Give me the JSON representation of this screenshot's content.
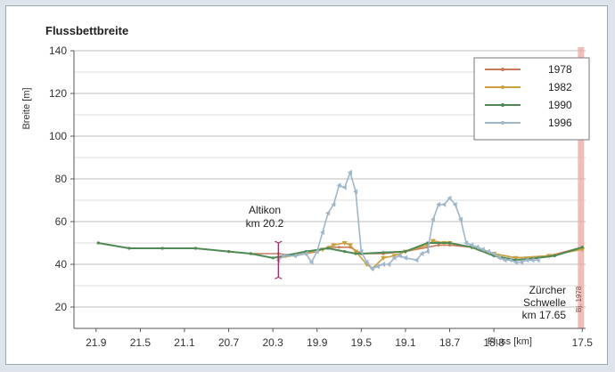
{
  "chart_data": {
    "type": "line",
    "title": "Flussbettbreite",
    "ylabel": "Breite [m]",
    "xlabel": "Fluss [km]",
    "xlim": [
      22.1,
      17.47
    ],
    "ylim": [
      10,
      140
    ],
    "grid": true,
    "x_ticks": [
      21.9,
      21.5,
      21.1,
      20.7,
      20.3,
      19.9,
      19.5,
      19.1,
      18.7,
      18.3,
      17.5
    ],
    "y_ticks": [
      20,
      40,
      60,
      80,
      100,
      120,
      140
    ],
    "legend_position": "top-right",
    "series": [
      {
        "name": "1978",
        "color": "#c97a5a",
        "points": [
          [
            21.88,
            50
          ],
          [
            21.6,
            47.5
          ],
          [
            21.3,
            47.5
          ],
          [
            21.0,
            47.5
          ],
          [
            20.7,
            46
          ],
          [
            20.5,
            45
          ],
          [
            20.25,
            45
          ],
          [
            20.1,
            44
          ],
          [
            19.9,
            46
          ],
          [
            19.8,
            48
          ],
          [
            19.7,
            48
          ],
          [
            19.6,
            48
          ],
          [
            19.5,
            45
          ],
          [
            19.3,
            45
          ],
          [
            19.1,
            46
          ],
          [
            18.9,
            48
          ],
          [
            18.8,
            49
          ],
          [
            18.7,
            49
          ],
          [
            18.5,
            48
          ],
          [
            18.3,
            45
          ],
          [
            18.1,
            43
          ],
          [
            17.8,
            44
          ],
          [
            17.5,
            48
          ]
        ]
      },
      {
        "name": "1982",
        "color": "#c8a040",
        "points": [
          [
            20.25,
            43
          ],
          [
            20.0,
            45
          ],
          [
            19.85,
            47
          ],
          [
            19.75,
            49
          ],
          [
            19.65,
            50
          ],
          [
            19.6,
            49
          ],
          [
            19.55,
            46
          ],
          [
            19.45,
            40
          ],
          [
            19.4,
            38
          ],
          [
            19.3,
            43
          ],
          [
            19.2,
            44
          ],
          [
            19.1,
            46
          ],
          [
            18.9,
            49
          ],
          [
            18.85,
            51
          ],
          [
            18.75,
            50
          ],
          [
            18.7,
            50
          ],
          [
            18.5,
            48
          ],
          [
            18.3,
            45
          ],
          [
            18.1,
            43
          ],
          [
            17.8,
            44
          ],
          [
            17.5,
            47
          ]
        ]
      },
      {
        "name": "1990",
        "color": "#4f8a55",
        "points": [
          [
            21.88,
            50
          ],
          [
            21.6,
            47.5
          ],
          [
            21.3,
            47.5
          ],
          [
            21.0,
            47.5
          ],
          [
            20.7,
            46
          ],
          [
            20.5,
            45
          ],
          [
            20.3,
            43
          ],
          [
            20.0,
            46
          ],
          [
            19.8,
            47.5
          ],
          [
            19.65,
            46
          ],
          [
            19.55,
            45
          ],
          [
            19.5,
            45
          ],
          [
            19.3,
            45.5
          ],
          [
            19.1,
            46
          ],
          [
            18.9,
            50
          ],
          [
            18.7,
            50
          ],
          [
            18.5,
            48
          ],
          [
            18.3,
            44
          ],
          [
            18.1,
            42
          ],
          [
            17.9,
            43
          ],
          [
            17.75,
            44
          ],
          [
            17.5,
            48
          ]
        ]
      },
      {
        "name": "1996",
        "color": "#9fb7ca",
        "points": [
          [
            20.25,
            42
          ],
          [
            20.2,
            44
          ],
          [
            20.1,
            44
          ],
          [
            20.0,
            45
          ],
          [
            19.95,
            41
          ],
          [
            19.9,
            46
          ],
          [
            19.85,
            55
          ],
          [
            19.8,
            64
          ],
          [
            19.75,
            68
          ],
          [
            19.7,
            77
          ],
          [
            19.65,
            76
          ],
          [
            19.6,
            83
          ],
          [
            19.55,
            74
          ],
          [
            19.5,
            46
          ],
          [
            19.45,
            41
          ],
          [
            19.4,
            38
          ],
          [
            19.35,
            39
          ],
          [
            19.3,
            40
          ],
          [
            19.25,
            40
          ],
          [
            19.2,
            43
          ],
          [
            19.15,
            44
          ],
          [
            19.1,
            43
          ],
          [
            19.0,
            42
          ],
          [
            18.95,
            45
          ],
          [
            18.9,
            46
          ],
          [
            18.85,
            61
          ],
          [
            18.8,
            68
          ],
          [
            18.75,
            68
          ],
          [
            18.7,
            71
          ],
          [
            18.65,
            68
          ],
          [
            18.6,
            61
          ],
          [
            18.55,
            50
          ],
          [
            18.5,
            49
          ],
          [
            18.45,
            48
          ],
          [
            18.4,
            47
          ],
          [
            18.35,
            46
          ],
          [
            18.3,
            45
          ],
          [
            18.25,
            43
          ],
          [
            18.2,
            42
          ],
          [
            18.15,
            42
          ],
          [
            18.1,
            41
          ],
          [
            18.05,
            41
          ],
          [
            18.0,
            42
          ],
          [
            17.95,
            42
          ],
          [
            17.9,
            42
          ]
        ]
      }
    ],
    "annotations": [
      {
        "text_lines": [
          "Altikon",
          "km 20.2"
        ],
        "x": 20.25,
        "y": 50
      },
      {
        "text_lines": [
          "Zürcher",
          "Schwelle",
          "km 17.65"
        ],
        "x": 17.52,
        "y": 20
      },
      {
        "text": "Bj. 1978",
        "x": 17.52,
        "y": 20
      }
    ]
  }
}
